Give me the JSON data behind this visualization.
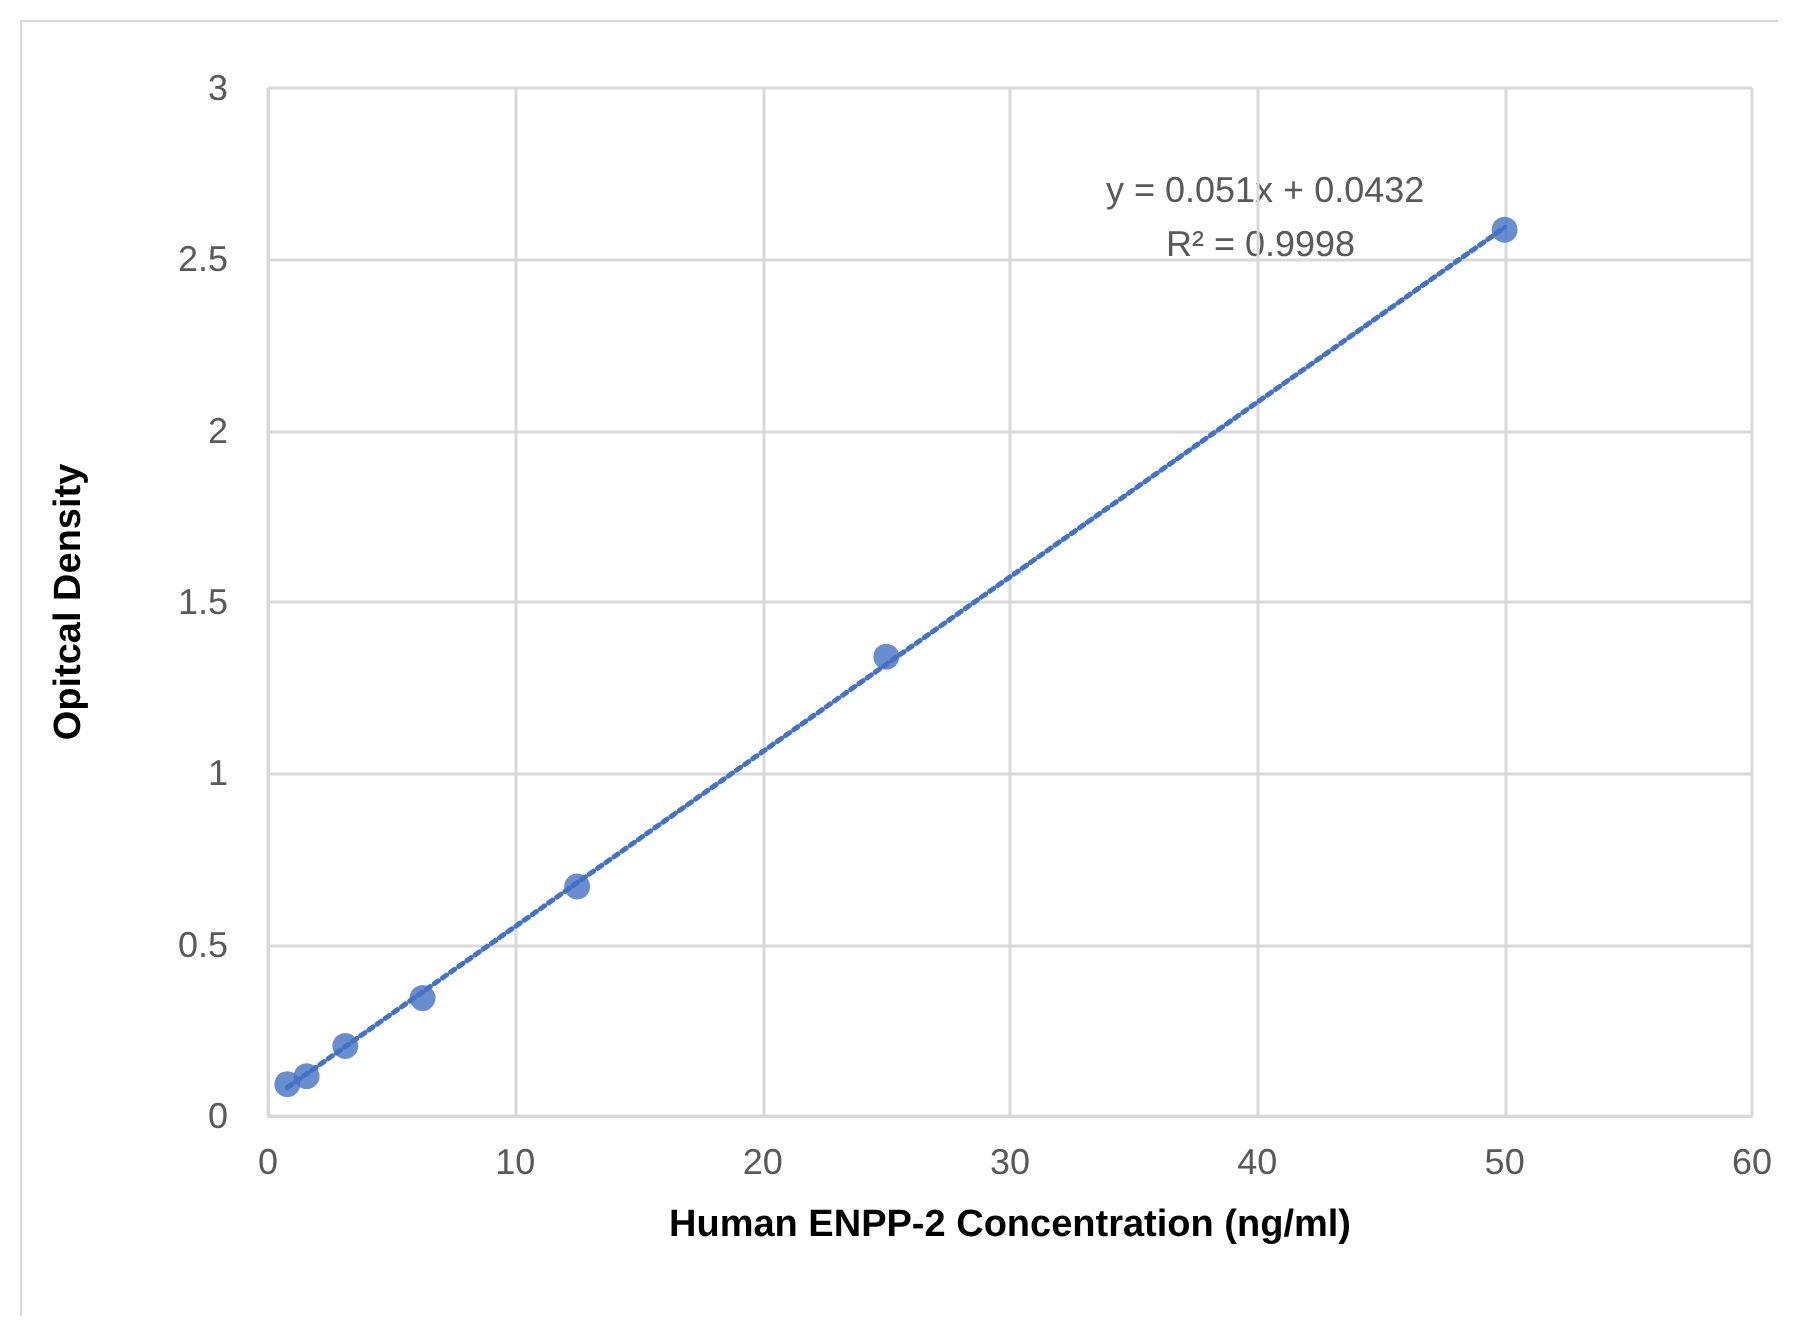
{
  "chart_data": {
    "type": "scatter",
    "xlabel": "Human ENPP-2 Concentration (ng/ml)",
    "ylabel": "Opitcal Density",
    "xlim": [
      0,
      60
    ],
    "xticks": [
      0,
      10,
      20,
      30,
      40,
      50,
      60
    ],
    "ylim": [
      0,
      3
    ],
    "yticks": [
      0,
      0.5,
      1,
      1.5,
      2,
      2.5,
      3
    ],
    "grid": true,
    "marker": "circle",
    "series": [
      {
        "color": "#4472c4",
        "x": [
          0.78,
          1.56,
          3.125,
          6.25,
          12.5,
          25,
          50
        ],
        "values": [
          0.093,
          0.116,
          0.204,
          0.344,
          0.67,
          1.34,
          2.586
        ]
      },
      {
        "type": "line",
        "color": "#4472c4",
        "marker": "none",
        "line_style": "dotted",
        "x": [
          0.78,
          50
        ],
        "values": [
          0.083,
          2.593
        ]
      }
    ],
    "annotations": [
      "y = 0.051x + 0.0432",
      "R² = 0.9998"
    ]
  }
}
